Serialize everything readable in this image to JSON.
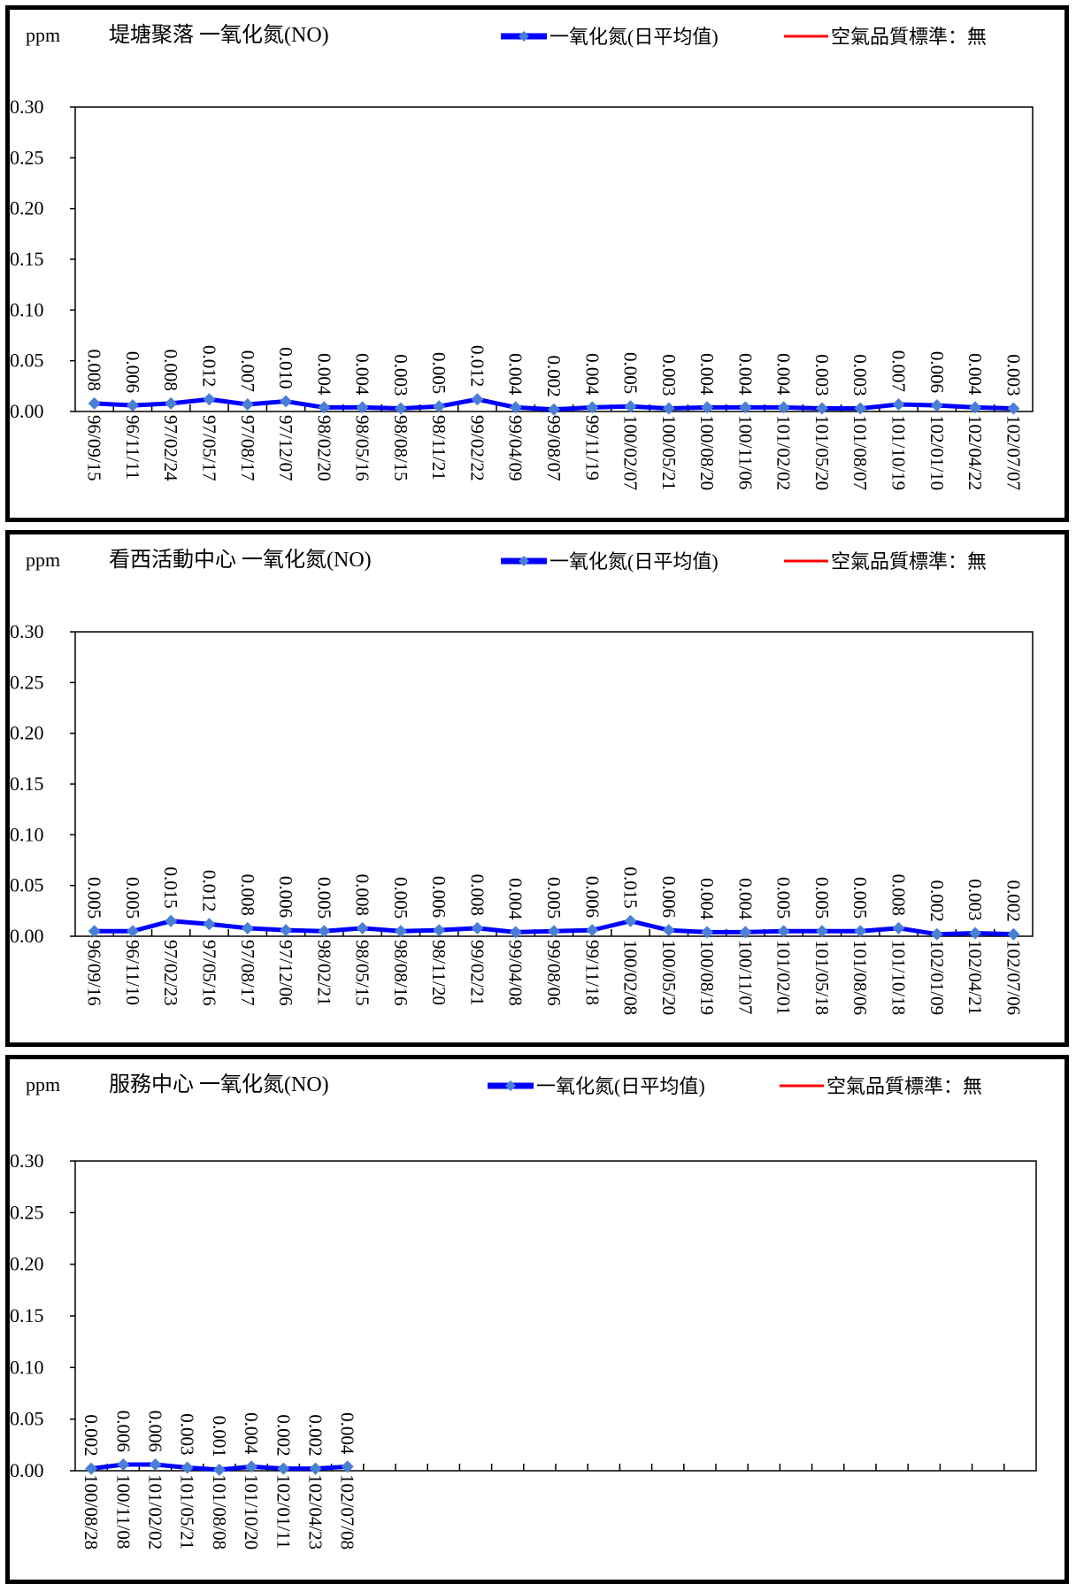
{
  "legend": {
    "series_label": "一氧化氮(日平均值)",
    "standard_label": "空氣品質標準：無"
  },
  "colors": {
    "series": "#0000ff",
    "marker": "#4a7fd6",
    "standard": "#ff0000",
    "frame": "#000000"
  },
  "chart_data": [
    {
      "type": "line",
      "title": "堤塘聚落 一氧化氮(NO)",
      "ylabel": "ppm",
      "ylim": [
        0,
        0.3
      ],
      "yticks": [
        "0.00",
        "0.05",
        "0.10",
        "0.15",
        "0.20",
        "0.25",
        "0.30"
      ],
      "slots": 25,
      "categories": [
        "96/09/15",
        "96/11/11",
        "97/02/24",
        "97/05/17",
        "97/08/17",
        "97/12/07",
        "98/02/20",
        "98/05/16",
        "98/08/15",
        "98/11/21",
        "99/02/22",
        "99/04/09",
        "99/08/07",
        "99/11/19",
        "100/02/07",
        "100/05/21",
        "100/08/20",
        "100/11/06",
        "101/02/02",
        "101/05/20",
        "101/08/07",
        "101/10/19",
        "102/01/10",
        "102/04/22",
        "102/07/07"
      ],
      "series": [
        {
          "name": "一氧化氮(日平均值)",
          "values": [
            0.008,
            0.006,
            0.008,
            0.012,
            0.007,
            0.01,
            0.004,
            0.004,
            0.003,
            0.005,
            0.012,
            0.004,
            0.002,
            0.004,
            0.005,
            0.003,
            0.004,
            0.004,
            0.004,
            0.003,
            0.003,
            0.007,
            0.006,
            0.004,
            0.003
          ]
        }
      ],
      "data_labels": [
        "0.008",
        "0.006",
        "0.008",
        "0.012",
        "0.007",
        "0.010",
        "0.004",
        "0.004",
        "0.003",
        "0.005",
        "0.012",
        "0.004",
        "0.002",
        "0.004",
        "0.005",
        "0.003",
        "0.004",
        "0.004",
        "0.004",
        "0.003",
        "0.003",
        "0.007",
        "0.006",
        "0.004",
        "0.003"
      ],
      "legend_position": "top-right",
      "grid": false
    },
    {
      "type": "line",
      "title": "看西活動中心 一氧化氮(NO)",
      "ylabel": "ppm",
      "ylim": [
        0,
        0.3
      ],
      "yticks": [
        "0.00",
        "0.05",
        "0.10",
        "0.15",
        "0.20",
        "0.25",
        "0.30"
      ],
      "slots": 25,
      "categories": [
        "96/09/16",
        "96/11/10",
        "97/02/23",
        "97/05/16",
        "97/08/17",
        "97/12/06",
        "98/02/21",
        "98/05/15",
        "98/08/16",
        "98/11/20",
        "99/02/21",
        "99/04/08",
        "99/08/06",
        "99/11/18",
        "100/02/08",
        "100/05/20",
        "100/08/19",
        "100/11/07",
        "101/02/01",
        "101/05/18",
        "101/08/06",
        "101/10/18",
        "102/01/09",
        "102/04/21",
        "102/07/06"
      ],
      "series": [
        {
          "name": "一氧化氮(日平均值)",
          "values": [
            0.005,
            0.005,
            0.015,
            0.012,
            0.008,
            0.006,
            0.005,
            0.008,
            0.005,
            0.006,
            0.008,
            0.004,
            0.005,
            0.006,
            0.015,
            0.006,
            0.004,
            0.004,
            0.005,
            0.005,
            0.005,
            0.008,
            0.002,
            0.003,
            0.002
          ]
        }
      ],
      "data_labels": [
        "0.005",
        "0.005",
        "0.015",
        "0.012",
        "0.008",
        "0.006",
        "0.005",
        "0.008",
        "0.005",
        "0.006",
        "0.008",
        "0.004",
        "0.005",
        "0.006",
        "0.015",
        "0.006",
        "0.004",
        "0.004",
        "0.005",
        "0.005",
        "0.005",
        "0.008",
        "0.002",
        "0.003",
        "0.002"
      ],
      "legend_position": "top-right",
      "grid": false
    },
    {
      "type": "line",
      "title": "服務中心 一氧化氮(NO)",
      "ylabel": "ppm",
      "ylim": [
        0,
        0.3
      ],
      "yticks": [
        "0.00",
        "0.05",
        "0.10",
        "0.15",
        "0.20",
        "0.25",
        "0.30"
      ],
      "slots": 30,
      "categories": [
        "100/08/28",
        "100/11/08",
        "101/02/02",
        "101/05/21",
        "101/08/08",
        "101/10/20",
        "102/01/11",
        "102/04/23",
        "102/07/08"
      ],
      "series": [
        {
          "name": "一氧化氮(日平均值)",
          "values": [
            0.002,
            0.006,
            0.006,
            0.003,
            0.001,
            0.004,
            0.002,
            0.002,
            0.004
          ]
        }
      ],
      "data_labels": [
        "0.002",
        "0.006",
        "0.006",
        "0.003",
        "0.001",
        "0.004",
        "0.002",
        "0.002",
        "0.004"
      ],
      "legend_position": "top-right",
      "grid": false
    }
  ]
}
